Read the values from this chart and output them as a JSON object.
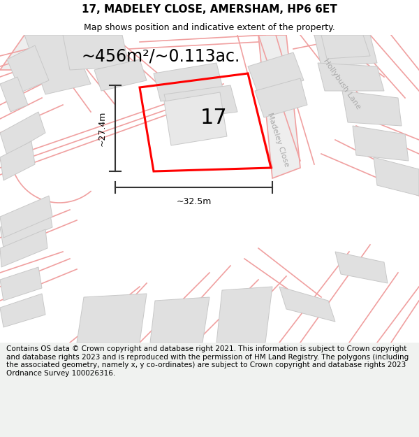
{
  "title_line1": "17, MADELEY CLOSE, AMERSHAM, HP6 6ET",
  "title_line2": "Map shows position and indicative extent of the property.",
  "footer_text": "Contains OS data © Crown copyright and database right 2021. This information is subject to Crown copyright and database rights 2023 and is reproduced with the permission of HM Land Registry. The polygons (including the associated geometry, namely x, y co-ordinates) are subject to Crown copyright and database rights 2023 Ordnance Survey 100026316.",
  "area_label": "~456m²/~0.113ac.",
  "property_number": "17",
  "dim_width": "~32.5m",
  "dim_height": "~27.4m",
  "map_bg": "#f2f2f2",
  "road_label_1": "Hollybush Lane",
  "road_label_2": "Madeley Close",
  "title_fontsize": 11,
  "subtitle_fontsize": 9,
  "footer_fontsize": 7.5
}
